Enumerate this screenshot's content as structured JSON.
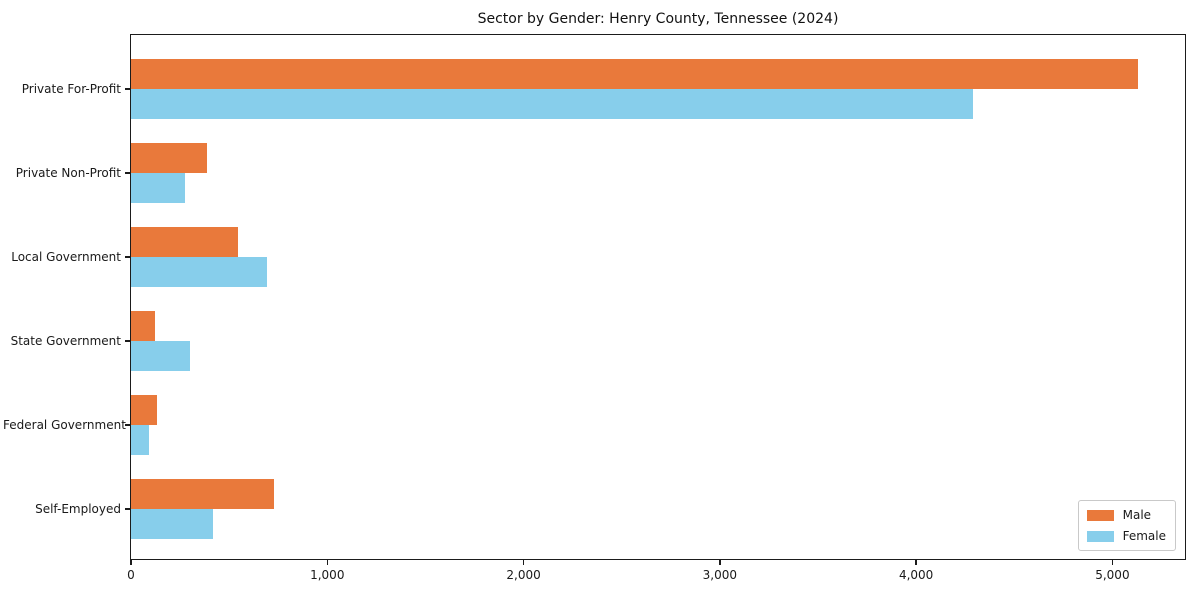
{
  "title": "Sector by Gender: Henry County, Tennessee (2024)",
  "chart_data": {
    "type": "bar",
    "orientation": "horizontal",
    "title": "Sector by Gender: Henry County, Tennessee (2024)",
    "categories": [
      "Private For-Profit",
      "Private Non-Profit",
      "Local Government",
      "State Government",
      "Federal Government",
      "Self-Employed"
    ],
    "series": [
      {
        "name": "Male",
        "color": "#E9793B",
        "values": [
          5130,
          385,
          545,
          120,
          135,
          730
        ]
      },
      {
        "name": "Female",
        "color": "#87CEEB",
        "values": [
          4290,
          275,
          695,
          300,
          90,
          420
        ]
      }
    ],
    "xlabel": "",
    "ylabel": "",
    "xlim": [
      0,
      5380
    ],
    "xticks": [
      0,
      1000,
      2000,
      3000,
      4000,
      5000
    ],
    "xtick_labels": [
      "0",
      "1,000",
      "2,000",
      "3,000",
      "4,000",
      "5,000"
    ],
    "grid": false,
    "legend": {
      "position": "lower right",
      "entries": [
        "Male",
        "Female"
      ]
    }
  }
}
